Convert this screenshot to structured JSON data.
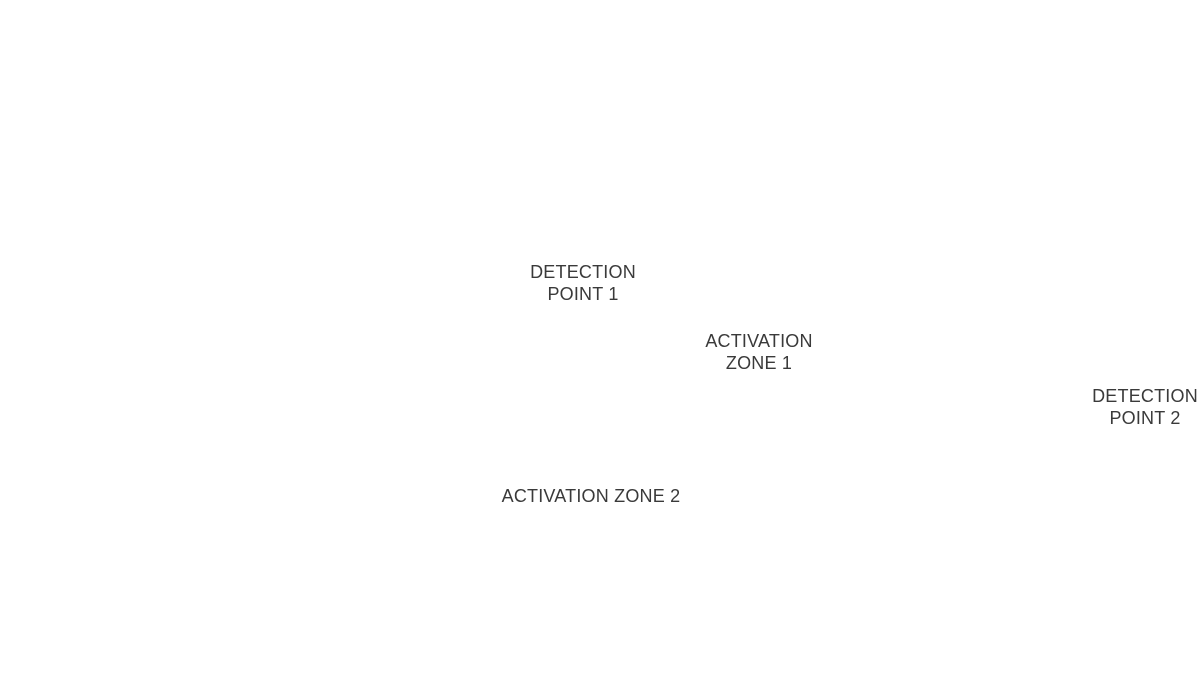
{
  "labels": {
    "detection_point_1": {
      "line1": "DETECTION",
      "line2": "POINT 1"
    },
    "activation_zone_1": {
      "line1": "ACTIVATION",
      "line2": "ZONE 1"
    },
    "detection_point_2": {
      "line1": "DETECTION",
      "line2": "POINT 2"
    },
    "activation_zone_2": {
      "text": "ACTIVATION ZONE 2"
    }
  },
  "colors": {
    "background": "#ffffff",
    "label_text": "#3a3a3a"
  }
}
